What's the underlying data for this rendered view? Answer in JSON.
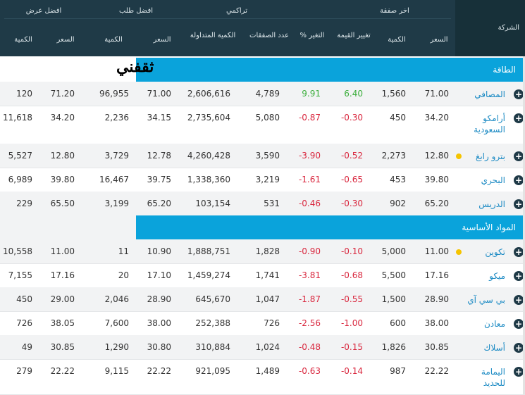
{
  "header": {
    "company": "الشركة",
    "last_trade": "اخر صفقة",
    "cumulative": "تراكمي",
    "best_bid": "افضل طلب",
    "best_offer": "افضل عرض",
    "price": "السعر",
    "qty": "الكمية",
    "value_change": "تغيير القيمة",
    "pct_change": "% التغير",
    "num_trades": "عدد الصفقات",
    "traded_qty": "الكمية المتداولة",
    "bid_price": "السعر",
    "bid_qty": "الكمية",
    "offer_price": "السعر",
    "offer_qty": "الكمية"
  },
  "logo_text": "ثقفني",
  "sectors": [
    {
      "name": "الطاقة",
      "rows": [
        {
          "name": "المصافي",
          "price": "71.00",
          "qty": "1,560",
          "chg": "6.40",
          "pct": "9.91",
          "trades": "4,789",
          "tqty": "2,606,616",
          "bid": "71.00",
          "bidq": "96,955",
          "offer": "71.20",
          "offerq": "120",
          "dir": "pos",
          "dot": false
        },
        {
          "name": "أرامكو السعودية",
          "price": "34.20",
          "qty": "450",
          "chg": "-0.30",
          "pct": "-0.87",
          "trades": "5,080",
          "tqty": "2,735,604",
          "bid": "34.15",
          "bidq": "2,236",
          "offer": "34.20",
          "offerq": "11,618",
          "dir": "neg",
          "dot": false
        },
        {
          "name": "بترو رابغ",
          "price": "12.80",
          "qty": "2,273",
          "chg": "-0.52",
          "pct": "-3.90",
          "trades": "3,590",
          "tqty": "4,260,428",
          "bid": "12.78",
          "bidq": "3,729",
          "offer": "12.80",
          "offerq": "5,527",
          "dir": "neg",
          "dot": true
        },
        {
          "name": "البحري",
          "price": "39.80",
          "qty": "453",
          "chg": "-0.65",
          "pct": "-1.61",
          "trades": "3,219",
          "tqty": "1,338,360",
          "bid": "39.75",
          "bidq": "16,467",
          "offer": "39.80",
          "offerq": "6,989",
          "dir": "neg",
          "dot": false
        },
        {
          "name": "الدريس",
          "price": "65.20",
          "qty": "902",
          "chg": "-0.30",
          "pct": "-0.46",
          "trades": "531",
          "tqty": "103,154",
          "bid": "65.20",
          "bidq": "3,199",
          "offer": "65.50",
          "offerq": "229",
          "dir": "neg",
          "dot": false
        }
      ]
    },
    {
      "name": "المواد الأساسية",
      "rows": [
        {
          "name": "تكوين",
          "price": "11.00",
          "qty": "5,000",
          "chg": "-0.10",
          "pct": "-0.90",
          "trades": "1,828",
          "tqty": "1,888,751",
          "bid": "10.90",
          "bidq": "11",
          "offer": "11.00",
          "offerq": "10,558",
          "dir": "neg",
          "dot": true
        },
        {
          "name": "ميكو",
          "price": "17.16",
          "qty": "5,500",
          "chg": "-0.68",
          "pct": "-3.81",
          "trades": "1,741",
          "tqty": "1,459,274",
          "bid": "17.10",
          "bidq": "20",
          "offer": "17.16",
          "offerq": "7,155",
          "dir": "neg",
          "dot": false
        },
        {
          "name": "بي سي آي",
          "price": "28.90",
          "qty": "1,500",
          "chg": "-0.55",
          "pct": "-1.87",
          "trades": "1,047",
          "tqty": "645,670",
          "bid": "28.90",
          "bidq": "2,046",
          "offer": "29.00",
          "offerq": "450",
          "dir": "neg",
          "dot": false
        },
        {
          "name": "معادن",
          "price": "38.00",
          "qty": "600",
          "chg": "-1.00",
          "pct": "-2.56",
          "trades": "726",
          "tqty": "252,388",
          "bid": "38.00",
          "bidq": "7,600",
          "offer": "38.05",
          "offerq": "726",
          "dir": "neg",
          "dot": false
        },
        {
          "name": "أسلاك",
          "price": "30.85",
          "qty": "1,826",
          "chg": "-0.15",
          "pct": "-0.48",
          "trades": "1,024",
          "tqty": "310,884",
          "bid": "30.80",
          "bidq": "1,290",
          "offer": "30.85",
          "offerq": "49",
          "dir": "neg",
          "dot": false
        },
        {
          "name": "اليمامة للحديد",
          "price": "22.22",
          "qty": "987",
          "chg": "-0.14",
          "pct": "-0.63",
          "trades": "1,489",
          "tqty": "921,095",
          "bid": "22.22",
          "bidq": "9,115",
          "offer": "22.22",
          "offerq": "279",
          "dir": "neg",
          "dot": false
        }
      ]
    }
  ],
  "colors": {
    "header": "#1f3a47",
    "sector": "#0aa3db",
    "negative": "#d9273e",
    "positive": "#3bae3b",
    "link": "#1d8bc4"
  }
}
